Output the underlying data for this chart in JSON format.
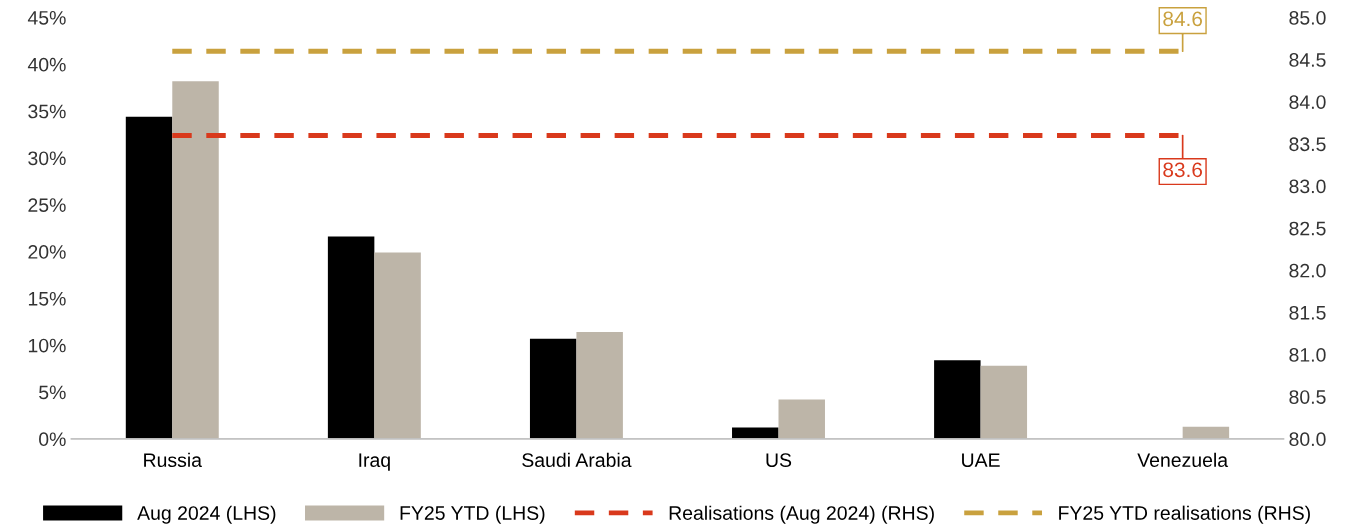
{
  "chart_data": {
    "type": "bar",
    "categories": [
      "Russia",
      "Iraq",
      "Saudi Arabia",
      "US",
      "UAE",
      "Venezuela"
    ],
    "series": [
      {
        "name": "Aug 2024 (LHS)",
        "color": "#000000",
        "values": [
          34.4,
          21.6,
          10.7,
          1.2,
          8.4,
          0
        ]
      },
      {
        "name": "FY25 YTD (LHS)",
        "color": "#bdb5a8",
        "values": [
          38.2,
          19.9,
          11.4,
          4.2,
          7.8,
          1.3
        ]
      },
      {
        "name": "Realisations (Aug 2024) (RHS)",
        "type": "line",
        "axis": "y2",
        "line_style": "dashed",
        "color": "#d9391c",
        "values": [
          83.6,
          83.6,
          83.6,
          83.6,
          83.6,
          83.6
        ],
        "value_labels": [
          null,
          null,
          null,
          null,
          null,
          "83.6"
        ]
      },
      {
        "name": "FY25 YTD realisations (RHS)",
        "type": "line",
        "axis": "y2",
        "line_style": "dashed",
        "color": "#c9a13e",
        "values": [
          84.6,
          84.6,
          84.6,
          84.6,
          84.6,
          84.6
        ],
        "value_labels": [
          null,
          null,
          null,
          null,
          null,
          "84.6"
        ]
      }
    ],
    "ylim": [
      0,
      45
    ],
    "yticks": [
      {
        "value": 0,
        "label": "0%"
      },
      {
        "value": 5,
        "label": "5%"
      },
      {
        "value": 10,
        "label": "10%"
      },
      {
        "value": 15,
        "label": "15%"
      },
      {
        "value": 20,
        "label": "20%"
      },
      {
        "value": 25,
        "label": "25%"
      },
      {
        "value": 30,
        "label": "30%"
      },
      {
        "value": 35,
        "label": "35%"
      },
      {
        "value": 40,
        "label": "40%"
      },
      {
        "value": 45,
        "label": "45%"
      }
    ],
    "y2lim": [
      80,
      85
    ],
    "y2ticks": [
      {
        "value": 80,
        "label": "80.0"
      },
      {
        "value": 80.5,
        "label": "80.5"
      },
      {
        "value": 81,
        "label": "81.0"
      },
      {
        "value": 81.5,
        "label": "81.5"
      },
      {
        "value": 82,
        "label": "82.0"
      },
      {
        "value": 82.5,
        "label": "82.5"
      },
      {
        "value": 83,
        "label": "83.0"
      },
      {
        "value": 83.5,
        "label": "83.5"
      },
      {
        "value": 84,
        "label": "84.0"
      },
      {
        "value": 84.5,
        "label": "84.5"
      },
      {
        "value": 85,
        "label": "85.0"
      }
    ],
    "grid": false,
    "legend": "bottom"
  }
}
